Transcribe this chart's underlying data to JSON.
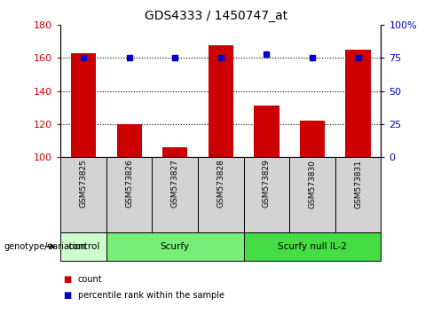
{
  "title": "GDS4333 / 1450747_at",
  "samples": [
    "GSM573825",
    "GSM573826",
    "GSM573827",
    "GSM573828",
    "GSM573829",
    "GSM573830",
    "GSM573831"
  ],
  "counts": [
    163,
    120,
    106,
    168,
    131,
    122,
    165
  ],
  "percentiles": [
    75,
    75,
    75,
    75,
    78,
    75,
    75
  ],
  "ylim_left": [
    100,
    180
  ],
  "ylim_right": [
    0,
    100
  ],
  "yticks_left": [
    100,
    120,
    140,
    160,
    180
  ],
  "yticks_right": [
    0,
    25,
    50,
    75,
    100
  ],
  "yticklabels_right": [
    "0",
    "25",
    "50",
    "75",
    "100%"
  ],
  "groups": [
    {
      "label": "control",
      "start": 0,
      "end": 1,
      "color": "#ccffcc"
    },
    {
      "label": "Scurfy",
      "start": 1,
      "end": 4,
      "color": "#66ee66"
    },
    {
      "label": "Scurfy null IL-2",
      "start": 4,
      "end": 7,
      "color": "#44dd44"
    }
  ],
  "bar_color": "#cc0000",
  "dot_color": "#0000cc",
  "bar_width": 0.55,
  "sample_bg_color": "#d3d3d3",
  "grid_ticks": [
    120,
    140,
    160
  ]
}
